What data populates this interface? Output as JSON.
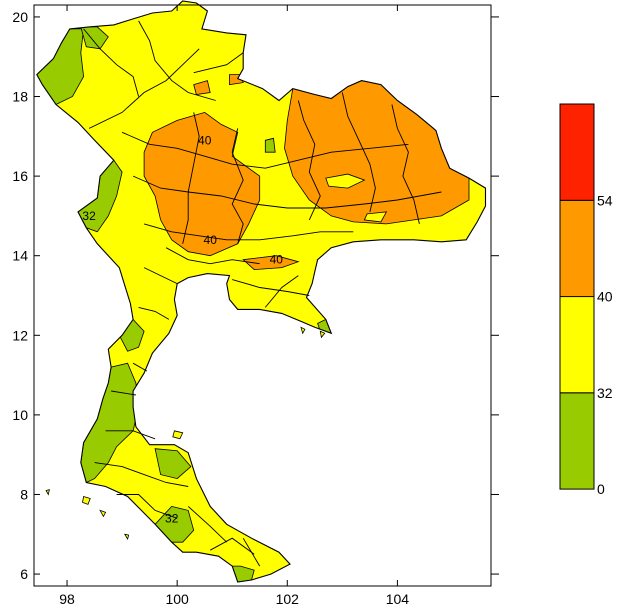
{
  "map": {
    "x_ticks": [
      {
        "value": 98,
        "label": "98"
      },
      {
        "value": 100,
        "label": "100"
      },
      {
        "value": 102,
        "label": "102"
      },
      {
        "value": 104,
        "label": "104"
      }
    ],
    "y_ticks": [
      {
        "value": 6,
        "label": "6"
      },
      {
        "value": 8,
        "label": "8"
      },
      {
        "value": 10,
        "label": "10"
      },
      {
        "value": 12,
        "label": "12"
      },
      {
        "value": 14,
        "label": "14"
      },
      {
        "value": 16,
        "label": "16"
      },
      {
        "value": 18,
        "label": "18"
      },
      {
        "value": 20,
        "label": "20"
      }
    ],
    "xlim": [
      97.4,
      105.7
    ],
    "ylim": [
      5.7,
      20.3
    ],
    "contour_labels": [
      {
        "text": "40",
        "lon": 100.5,
        "lat": 16.8
      },
      {
        "text": "40",
        "lon": 100.6,
        "lat": 14.3
      },
      {
        "text": "40",
        "lon": 101.8,
        "lat": 13.8
      },
      {
        "text": "32",
        "lon": 98.4,
        "lat": 14.9
      },
      {
        "text": "32",
        "lon": 99.9,
        "lat": 7.3
      }
    ]
  },
  "legend": {
    "classes": [
      {
        "range": [
          0,
          32
        ],
        "color": "#99cc00"
      },
      {
        "range": [
          32,
          40
        ],
        "color": "#ffff00"
      },
      {
        "range": [
          40,
          54
        ],
        "color": "#ff9900"
      },
      {
        "range": [
          54,
          60
        ],
        "color": "#ff2200"
      }
    ],
    "labels": [
      "0",
      "32",
      "40",
      "54"
    ]
  }
}
